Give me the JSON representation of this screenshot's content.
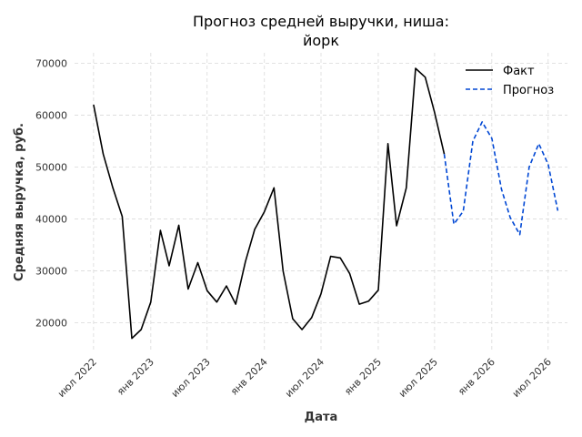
{
  "chart_data": {
    "type": "line",
    "title": [
      "Прогноз средней выручки, ниша:",
      "йорк"
    ],
    "xlabel": "Дата",
    "ylabel": "Средняя выручка, руб.",
    "x_ticks": [
      {
        "label": "июл 2022",
        "date": "2022-07-01"
      },
      {
        "label": "янв 2023",
        "date": "2023-01-01"
      },
      {
        "label": "июл 2023",
        "date": "2023-07-01"
      },
      {
        "label": "янв 2024",
        "date": "2024-01-01"
      },
      {
        "label": "июл 2024",
        "date": "2024-07-01"
      },
      {
        "label": "янв 2025",
        "date": "2025-01-01"
      },
      {
        "label": "июл 2025",
        "date": "2025-07-01"
      },
      {
        "label": "янв 2026",
        "date": "2026-01-01"
      },
      {
        "label": "июл 2026",
        "date": "2026-07-01"
      }
    ],
    "y_ticks": [
      20000,
      30000,
      40000,
      50000,
      60000,
      70000
    ],
    "xlim": [
      "2022-05-01",
      "2026-09-01"
    ],
    "ylim": [
      14500,
      72000
    ],
    "grid": true,
    "legend_position": "top-right",
    "series": [
      {
        "name": "Факт",
        "color": "#000000",
        "style": "solid",
        "points": [
          [
            "2022-07-01",
            62000
          ],
          [
            "2022-08-01",
            52500
          ],
          [
            "2022-09-01",
            46000
          ],
          [
            "2022-10-01",
            40500
          ],
          [
            "2022-11-01",
            17000
          ],
          [
            "2022-12-01",
            18700
          ],
          [
            "2023-01-01",
            24000
          ],
          [
            "2023-02-01",
            37800
          ],
          [
            "2023-03-01",
            31000
          ],
          [
            "2023-04-01",
            38800
          ],
          [
            "2023-05-01",
            26500
          ],
          [
            "2023-06-01",
            31600
          ],
          [
            "2023-07-01",
            26200
          ],
          [
            "2023-08-01",
            24000
          ],
          [
            "2023-09-01",
            27100
          ],
          [
            "2023-10-01",
            23600
          ],
          [
            "2023-11-01",
            31800
          ],
          [
            "2023-12-01",
            38000
          ],
          [
            "2024-01-01",
            41400
          ],
          [
            "2024-02-01",
            46000
          ],
          [
            "2024-03-01",
            30000
          ],
          [
            "2024-04-01",
            20800
          ],
          [
            "2024-05-01",
            18700
          ],
          [
            "2024-06-01",
            21000
          ],
          [
            "2024-07-01",
            25600
          ],
          [
            "2024-08-01",
            32800
          ],
          [
            "2024-09-01",
            32500
          ],
          [
            "2024-10-01",
            29500
          ],
          [
            "2024-11-01",
            23600
          ],
          [
            "2024-12-01",
            24200
          ],
          [
            "2025-01-01",
            26300
          ],
          [
            "2025-02-01",
            54500
          ],
          [
            "2025-03-01",
            38700
          ],
          [
            "2025-04-01",
            46000
          ],
          [
            "2025-05-01",
            69000
          ],
          [
            "2025-06-01",
            67300
          ],
          [
            "2025-07-01",
            60500
          ],
          [
            "2025-08-01",
            52500
          ]
        ]
      },
      {
        "name": "Прогноз",
        "color": "#0047d4",
        "style": "dashed",
        "points": [
          [
            "2025-08-01",
            52500
          ],
          [
            "2025-09-01",
            39000
          ],
          [
            "2025-10-01",
            41500
          ],
          [
            "2025-11-01",
            55000
          ],
          [
            "2025-12-01",
            58700
          ],
          [
            "2026-01-01",
            55500
          ],
          [
            "2026-02-01",
            45700
          ],
          [
            "2026-03-01",
            40300
          ],
          [
            "2026-04-01",
            37000
          ],
          [
            "2026-05-01",
            50000
          ],
          [
            "2026-06-01",
            54500
          ],
          [
            "2026-07-01",
            50500
          ],
          [
            "2026-08-01",
            41600
          ]
        ]
      }
    ]
  }
}
